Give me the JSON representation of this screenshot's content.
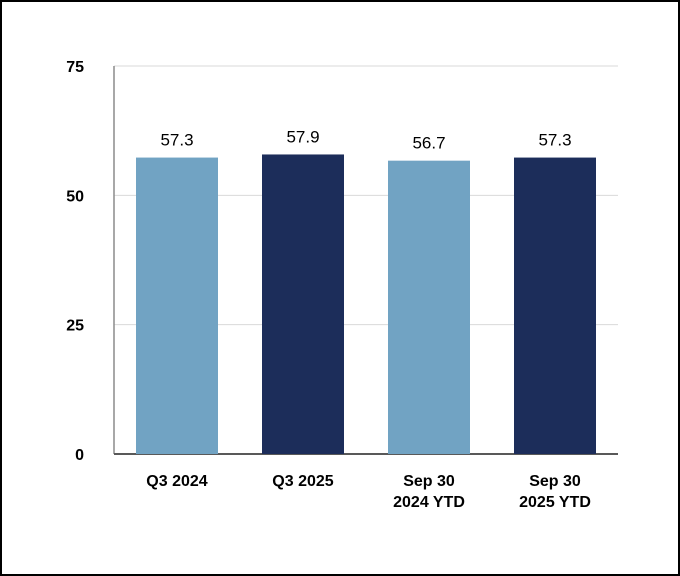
{
  "chart_data": {
    "type": "bar",
    "categories": [
      [
        "Q3 2024"
      ],
      [
        "Q3 2025"
      ],
      [
        "Sep 30",
        "2024 YTD"
      ],
      [
        "Sep 30",
        "2025 YTD"
      ]
    ],
    "values": [
      57.3,
      57.9,
      56.7,
      57.3
    ],
    "data_labels": [
      "57.3",
      "57.9",
      "56.7",
      "57.3"
    ],
    "bar_colors": [
      "#71a3c3",
      "#1c2d5a",
      "#71a3c3",
      "#1c2d5a"
    ],
    "yticks": [
      0,
      25,
      50,
      75
    ],
    "ylim": [
      0,
      75
    ],
    "grid": true,
    "legend": "none"
  }
}
